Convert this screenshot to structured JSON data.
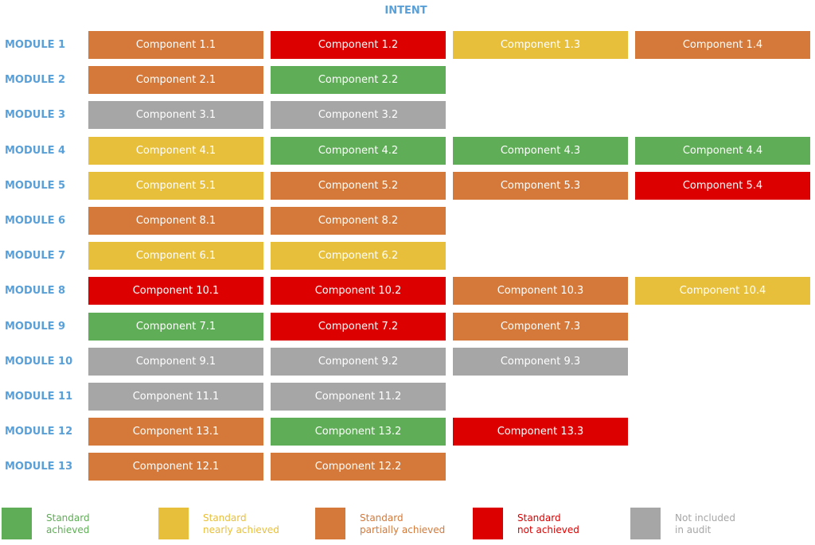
{
  "title": "INTENT",
  "colors": {
    "achieved": "#5fad56",
    "nearly": "#e8bf3a",
    "partially": "#d4793a",
    "not": "#dc0000",
    "excluded": "#a6a6a6",
    "heading": "#5aa0d8"
  },
  "modules": [
    {
      "label": "MODULE 1",
      "components": [
        {
          "label": "Component 1.1",
          "status": "partially"
        },
        {
          "label": "Component 1.2",
          "status": "not"
        },
        {
          "label": "Component 1.3",
          "status": "nearly"
        },
        {
          "label": "Component 1.4",
          "status": "partially"
        }
      ]
    },
    {
      "label": "MODULE 2",
      "components": [
        {
          "label": "Component 2.1",
          "status": "partially"
        },
        {
          "label": "Component 2.2",
          "status": "achieved"
        }
      ]
    },
    {
      "label": "MODULE 3",
      "components": [
        {
          "label": "Component 3.1",
          "status": "excluded"
        },
        {
          "label": "Component 3.2",
          "status": "excluded"
        }
      ]
    },
    {
      "label": "MODULE 4",
      "components": [
        {
          "label": "Component 4.1",
          "status": "nearly"
        },
        {
          "label": "Component 4.2",
          "status": "achieved"
        },
        {
          "label": "Component 4.3",
          "status": "achieved"
        },
        {
          "label": "Component 4.4",
          "status": "achieved"
        }
      ]
    },
    {
      "label": "MODULE 5",
      "components": [
        {
          "label": "Component 5.1",
          "status": "nearly"
        },
        {
          "label": "Component 5.2",
          "status": "partially"
        },
        {
          "label": "Component 5.3",
          "status": "partially"
        },
        {
          "label": "Component 5.4",
          "status": "not"
        }
      ]
    },
    {
      "label": "MODULE 6",
      "components": [
        {
          "label": "Component 8.1",
          "status": "partially"
        },
        {
          "label": "Component 8.2",
          "status": "partially"
        }
      ]
    },
    {
      "label": "MODULE 7",
      "components": [
        {
          "label": "Component 6.1",
          "status": "nearly"
        },
        {
          "label": "Component 6.2",
          "status": "nearly"
        }
      ]
    },
    {
      "label": "MODULE 8",
      "components": [
        {
          "label": "Component 10.1",
          "status": "not"
        },
        {
          "label": "Component 10.2",
          "status": "not"
        },
        {
          "label": "Component 10.3",
          "status": "partially"
        },
        {
          "label": "Component 10.4",
          "status": "nearly"
        }
      ]
    },
    {
      "label": "MODULE 9",
      "components": [
        {
          "label": "Component 7.1",
          "status": "achieved"
        },
        {
          "label": "Component 7.2",
          "status": "not"
        },
        {
          "label": "Component 7.3",
          "status": "partially"
        }
      ]
    },
    {
      "label": "MODULE 10",
      "components": [
        {
          "label": "Component 9.1",
          "status": "excluded"
        },
        {
          "label": "Component 9.2",
          "status": "excluded"
        },
        {
          "label": "Component 9.3",
          "status": "excluded"
        }
      ]
    },
    {
      "label": "MODULE 11",
      "components": [
        {
          "label": "Component 11.1",
          "status": "excluded"
        },
        {
          "label": "Component 11.2",
          "status": "excluded"
        }
      ]
    },
    {
      "label": "MODULE 12",
      "components": [
        {
          "label": "Component 13.1",
          "status": "partially"
        },
        {
          "label": "Component 13.2",
          "status": "achieved"
        },
        {
          "label": "Component 13.3",
          "status": "not"
        }
      ]
    },
    {
      "label": "MODULE 13",
      "components": [
        {
          "label": "Component 12.1",
          "status": "partially"
        },
        {
          "label": "Component 12.2",
          "status": "partially"
        }
      ]
    }
  ],
  "legend": [
    {
      "status": "achieved",
      "line1": "Standard",
      "line2": "achieved"
    },
    {
      "status": "nearly",
      "line1": "Standard",
      "line2": "nearly achieved"
    },
    {
      "status": "partially",
      "line1": "Standard",
      "line2": "partially achieved"
    },
    {
      "status": "not",
      "line1": "Standard",
      "line2": "not achieved"
    },
    {
      "status": "excluded",
      "line1": "Not included",
      "line2": "in audit"
    }
  ]
}
